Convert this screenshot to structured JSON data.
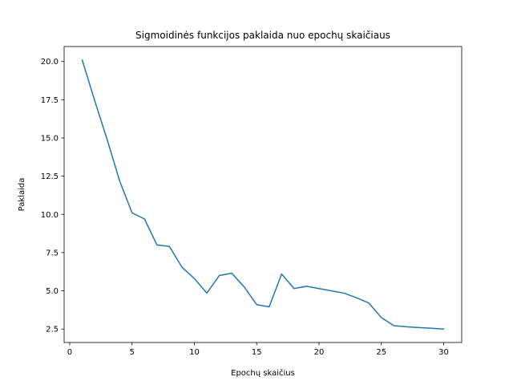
{
  "chart_data": {
    "type": "line",
    "title": "Sigmoidinės funkcijos paklaida nuo epochų skaičiaus",
    "xlabel": "Epochų skaičius",
    "ylabel": "Paklaida",
    "xlim": [
      -0.45,
      31.45
    ],
    "ylim": [
      1.62,
      20.98
    ],
    "xticks": [
      0,
      5,
      10,
      15,
      20,
      25,
      30
    ],
    "yticks": [
      2.5,
      5.0,
      7.5,
      10.0,
      12.5,
      15.0,
      17.5,
      20.0
    ],
    "xtick_labels": [
      "0",
      "5",
      "10",
      "15",
      "20",
      "25",
      "30"
    ],
    "ytick_labels": [
      "2.5",
      "5.0",
      "7.5",
      "10.0",
      "12.5",
      "15.0",
      "17.5",
      "20.0"
    ],
    "grid": false,
    "series": [
      {
        "color": "#1f77b4",
        "x": [
          1,
          2,
          3,
          4,
          5,
          6,
          7,
          8,
          9,
          10,
          11,
          12,
          13,
          14,
          15,
          16,
          17,
          18,
          19,
          20,
          21,
          22,
          23,
          24,
          25,
          26,
          27,
          28,
          29,
          30
        ],
        "y": [
          20.1,
          17.45,
          14.9,
          12.2,
          10.1,
          9.7,
          8.0,
          7.9,
          6.55,
          5.8,
          4.85,
          6.0,
          6.15,
          5.25,
          4.1,
          3.95,
          6.1,
          5.15,
          5.3,
          5.15,
          5.0,
          4.85,
          4.55,
          4.2,
          3.25,
          2.72,
          2.65,
          2.6,
          2.55,
          2.5
        ]
      }
    ]
  }
}
